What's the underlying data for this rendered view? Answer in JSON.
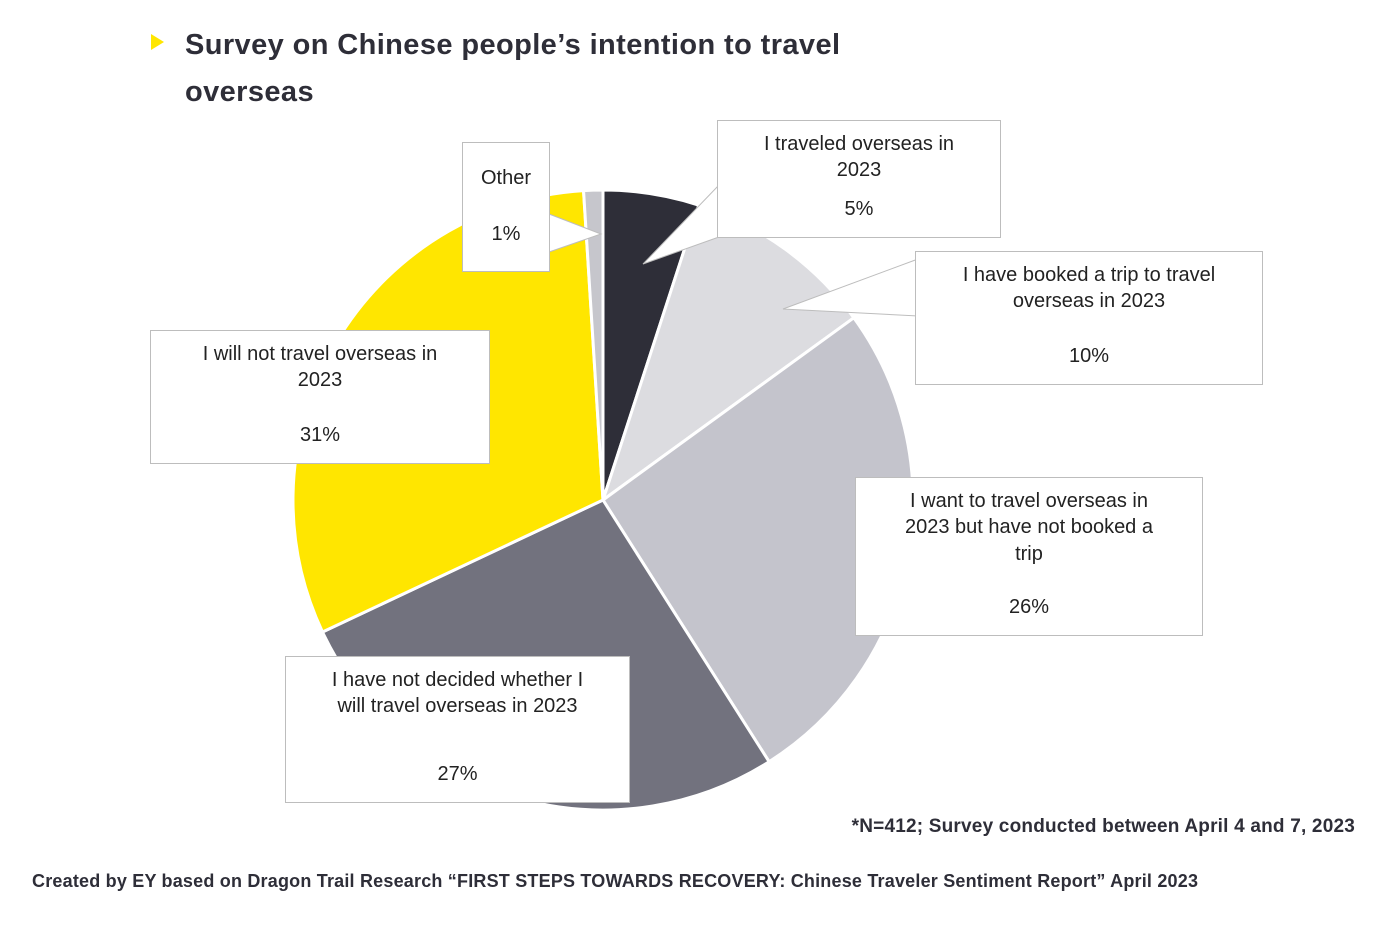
{
  "title": {
    "line1": "Survey on Chinese people’s intention to travel",
    "line2": "overseas",
    "full": "Survey on Chinese people’s intention to travel overseas"
  },
  "chart_data": {
    "type": "pie",
    "title": "Survey on Chinese people’s intention to travel overseas",
    "start_angle_deg": 0,
    "direction": "clockwise",
    "unit": "%",
    "legend_position": "callout-labels",
    "slices": [
      {
        "label": "I traveled overseas in 2023",
        "value": 5,
        "display": "5%",
        "color": "#2e2e38"
      },
      {
        "label": "I have booked a trip to travel overseas in 2023",
        "value": 10,
        "display": "10%",
        "color": "#dcdce0"
      },
      {
        "label": "I want to travel overseas in 2023 but have not booked a trip",
        "value": 26,
        "display": "26%",
        "color": "#c4c4cc"
      },
      {
        "label": "I have not decided whether I will travel overseas in 2023",
        "value": 27,
        "display": "27%",
        "color": "#72727e"
      },
      {
        "label": "I will not travel overseas in 2023",
        "value": 31,
        "display": "31%",
        "color": "#ffe600"
      },
      {
        "label": "Other",
        "value": 1,
        "display": "1%",
        "color": "#c6c6cc"
      }
    ],
    "note": "*N=412; Survey conducted between April 4 and 7, 2023"
  },
  "callouts": [
    {
      "label": "I traveled overseas in\n2023",
      "pct": "5%"
    },
    {
      "label": "I have booked a trip to travel\noverseas in 2023",
      "pct": "10%"
    },
    {
      "label": "I want to travel overseas in\n2023 but have not booked a\ntrip",
      "pct": "26%"
    },
    {
      "label": "I have not decided whether I\nwill travel overseas in 2023",
      "pct": "27%"
    },
    {
      "label": "I will not travel overseas in\n2023",
      "pct": "31%"
    },
    {
      "label": "Other",
      "pct": "1%"
    }
  ],
  "note": "*N=412; Survey conducted between April 4 and 7, 2023",
  "footer": "Created by EY based on Dragon Trail Research “FIRST STEPS TOWARDS RECOVERY: Chinese Traveler Sentiment Report” April 2023",
  "colors": {
    "accent_yellow": "#ffe600",
    "dark_navy": "#2e2e38",
    "callout_border": "#bdbdbd",
    "slice_gap": "#ffffff"
  }
}
